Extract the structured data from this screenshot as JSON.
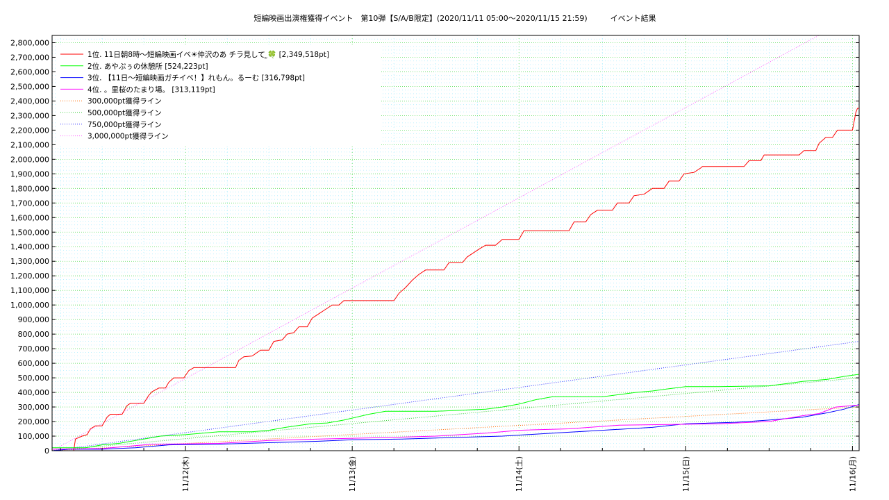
{
  "chart_data": {
    "type": "line",
    "title": "短編映画出演権獲得イベント　第10弾【S/A/B限定】(2020/11/11 05:00〜2020/11/15 21:59)　　　イベント結果",
    "xlabel": "",
    "ylabel": "",
    "x_unit": "days from 2020/11/11 00:00",
    "xlim": [
      0.2,
      5.04
    ],
    "ylim": [
      0,
      2850000
    ],
    "y_ticks": [
      0,
      100000,
      200000,
      300000,
      400000,
      500000,
      600000,
      700000,
      800000,
      900000,
      1000000,
      1100000,
      1200000,
      1300000,
      1400000,
      1500000,
      1600000,
      1700000,
      1800000,
      1900000,
      2000000,
      2100000,
      2200000,
      2300000,
      2400000,
      2500000,
      2600000,
      2700000,
      2800000
    ],
    "y_tick_labels": [
      "0",
      "100,000",
      "200,000",
      "300,000",
      "400,000",
      "500,000",
      "600,000",
      "700,000",
      "800,000",
      "900,000",
      "1,000,000",
      "1,100,000",
      "1,200,000",
      "1,300,000",
      "1,400,000",
      "1,500,000",
      "1,600,000",
      "1,700,000",
      "1,800,000",
      "1,900,000",
      "2,000,000",
      "2,100,000",
      "2,200,000",
      "2,300,000",
      "2,400,000",
      "2,500,000",
      "2,600,000",
      "2,700,000",
      "2,800,000"
    ],
    "x_major_ticks": [
      {
        "x": 1,
        "label": "11/12(木)"
      },
      {
        "x": 2,
        "label": "11/13(金)"
      },
      {
        "x": 3,
        "label": "11/14(土)"
      },
      {
        "x": 4,
        "label": "11/15(日)"
      },
      {
        "x": 5,
        "label": "11/16(月)"
      }
    ],
    "grid": true,
    "legend_position": "top-left",
    "series": [
      {
        "name": "1位. 11日朝8時〜短編映画イベ☀仲沢のあ チラ見して ̫🍀 [2,349,518pt]",
        "color": "#ff0000",
        "style": "solid",
        "points": [
          [
            0.2,
            0
          ],
          [
            0.33,
            0
          ],
          [
            0.34,
            80000
          ],
          [
            0.38,
            100000
          ],
          [
            0.41,
            110000
          ],
          [
            0.43,
            150000
          ],
          [
            0.46,
            170000
          ],
          [
            0.5,
            170000
          ],
          [
            0.53,
            230000
          ],
          [
            0.55,
            250000
          ],
          [
            0.62,
            250000
          ],
          [
            0.65,
            310000
          ],
          [
            0.67,
            325000
          ],
          [
            0.75,
            325000
          ],
          [
            0.78,
            380000
          ],
          [
            0.8,
            405000
          ],
          [
            0.84,
            430000
          ],
          [
            0.88,
            430000
          ],
          [
            0.9,
            470000
          ],
          [
            0.93,
            500000
          ],
          [
            0.99,
            500000
          ],
          [
            1.02,
            550000
          ],
          [
            1.05,
            570000
          ],
          [
            1.3,
            570000
          ],
          [
            1.32,
            620000
          ],
          [
            1.35,
            645000
          ],
          [
            1.4,
            650000
          ],
          [
            1.45,
            690000
          ],
          [
            1.5,
            690000
          ],
          [
            1.53,
            750000
          ],
          [
            1.58,
            760000
          ],
          [
            1.61,
            800000
          ],
          [
            1.65,
            810000
          ],
          [
            1.68,
            850000
          ],
          [
            1.73,
            850000
          ],
          [
            1.76,
            910000
          ],
          [
            1.8,
            940000
          ],
          [
            1.84,
            970000
          ],
          [
            1.88,
            1000000
          ],
          [
            1.92,
            1000000
          ],
          [
            1.95,
            1030000
          ],
          [
            2.25,
            1030000
          ],
          [
            2.28,
            1080000
          ],
          [
            2.32,
            1120000
          ],
          [
            2.36,
            1170000
          ],
          [
            2.4,
            1210000
          ],
          [
            2.44,
            1240000
          ],
          [
            2.55,
            1240000
          ],
          [
            2.58,
            1290000
          ],
          [
            2.66,
            1290000
          ],
          [
            2.69,
            1330000
          ],
          [
            2.73,
            1360000
          ],
          [
            2.77,
            1390000
          ],
          [
            2.8,
            1410000
          ],
          [
            2.86,
            1410000
          ],
          [
            2.9,
            1450000
          ],
          [
            3.0,
            1450000
          ],
          [
            3.03,
            1510000
          ],
          [
            3.3,
            1510000
          ],
          [
            3.33,
            1570000
          ],
          [
            3.4,
            1570000
          ],
          [
            3.43,
            1620000
          ],
          [
            3.47,
            1650000
          ],
          [
            3.56,
            1650000
          ],
          [
            3.59,
            1700000
          ],
          [
            3.66,
            1700000
          ],
          [
            3.69,
            1750000
          ],
          [
            3.75,
            1760000
          ],
          [
            3.8,
            1800000
          ],
          [
            3.87,
            1800000
          ],
          [
            3.9,
            1850000
          ],
          [
            3.96,
            1850000
          ],
          [
            3.99,
            1900000
          ],
          [
            4.05,
            1910000
          ],
          [
            4.09,
            1940000
          ],
          [
            4.1,
            1950000
          ],
          [
            4.35,
            1950000
          ],
          [
            4.38,
            1990000
          ],
          [
            4.45,
            1990000
          ],
          [
            4.47,
            2030000
          ],
          [
            4.68,
            2030000
          ],
          [
            4.71,
            2060000
          ],
          [
            4.78,
            2060000
          ],
          [
            4.8,
            2110000
          ],
          [
            4.84,
            2150000
          ],
          [
            4.88,
            2150000
          ],
          [
            4.91,
            2200000
          ],
          [
            5.0,
            2200000
          ],
          [
            5.01,
            2260000
          ],
          [
            5.02,
            2320000
          ],
          [
            5.03,
            2349518
          ],
          [
            5.04,
            2349518
          ]
        ]
      },
      {
        "name": "2位. あやぷぅの休憩所 [524,223pt]",
        "color": "#00ff00",
        "style": "solid",
        "points": [
          [
            0.2,
            20000
          ],
          [
            0.4,
            20000
          ],
          [
            0.5,
            40000
          ],
          [
            0.6,
            50000
          ],
          [
            0.75,
            80000
          ],
          [
            0.85,
            100000
          ],
          [
            1.0,
            110000
          ],
          [
            1.2,
            130000
          ],
          [
            1.4,
            130000
          ],
          [
            1.5,
            140000
          ],
          [
            1.6,
            160000
          ],
          [
            1.75,
            185000
          ],
          [
            1.85,
            190000
          ],
          [
            1.95,
            210000
          ],
          [
            2.1,
            250000
          ],
          [
            2.2,
            270000
          ],
          [
            2.5,
            270000
          ],
          [
            2.6,
            275000
          ],
          [
            2.8,
            285000
          ],
          [
            2.9,
            300000
          ],
          [
            3.0,
            320000
          ],
          [
            3.1,
            350000
          ],
          [
            3.2,
            370000
          ],
          [
            3.5,
            370000
          ],
          [
            3.6,
            385000
          ],
          [
            3.7,
            400000
          ],
          [
            3.8,
            410000
          ],
          [
            3.9,
            425000
          ],
          [
            4.0,
            440000
          ],
          [
            4.2,
            440000
          ],
          [
            4.5,
            445000
          ],
          [
            4.6,
            460000
          ],
          [
            4.7,
            475000
          ],
          [
            4.85,
            490000
          ],
          [
            4.95,
            510000
          ],
          [
            5.04,
            524223
          ]
        ]
      },
      {
        "name": "3位. 【11日〜短編映画ガチイベ！】れもん。るーむ [316,798pt]",
        "color": "#0000ff",
        "style": "solid",
        "points": [
          [
            0.2,
            0
          ],
          [
            0.3,
            10000
          ],
          [
            0.5,
            10000
          ],
          [
            0.7,
            20000
          ],
          [
            0.9,
            40000
          ],
          [
            1.2,
            45000
          ],
          [
            1.5,
            55000
          ],
          [
            1.8,
            65000
          ],
          [
            2.0,
            75000
          ],
          [
            2.3,
            80000
          ],
          [
            2.6,
            90000
          ],
          [
            2.9,
            100000
          ],
          [
            3.2,
            120000
          ],
          [
            3.5,
            140000
          ],
          [
            3.8,
            160000
          ],
          [
            4.0,
            185000
          ],
          [
            4.3,
            195000
          ],
          [
            4.5,
            210000
          ],
          [
            4.7,
            230000
          ],
          [
            4.85,
            260000
          ],
          [
            4.95,
            285000
          ],
          [
            5.04,
            316798
          ]
        ]
      },
      {
        "name": "4位. 。里桜のたまり場。 [313,119pt]",
        "color": "#ff00ff",
        "style": "solid",
        "points": [
          [
            0.2,
            10000
          ],
          [
            0.5,
            15000
          ],
          [
            0.8,
            45000
          ],
          [
            1.2,
            50000
          ],
          [
            1.5,
            70000
          ],
          [
            1.8,
            80000
          ],
          [
            2.2,
            90000
          ],
          [
            2.5,
            100000
          ],
          [
            2.8,
            120000
          ],
          [
            3.0,
            140000
          ],
          [
            3.3,
            150000
          ],
          [
            3.6,
            175000
          ],
          [
            3.9,
            180000
          ],
          [
            4.2,
            185000
          ],
          [
            4.5,
            200000
          ],
          [
            4.7,
            240000
          ],
          [
            4.8,
            255000
          ],
          [
            4.9,
            300000
          ],
          [
            5.04,
            313119
          ]
        ]
      },
      {
        "name": "300,000pt獲得ライン",
        "color": "#ff6a00",
        "style": "dotted",
        "points": [
          [
            0.2,
            0
          ],
          [
            5.04,
            300000
          ]
        ]
      },
      {
        "name": "500,000pt獲得ライン",
        "color": "#33cc33",
        "style": "dotted",
        "points": [
          [
            0.2,
            0
          ],
          [
            5.04,
            500000
          ]
        ]
      },
      {
        "name": "750,000pt獲得ライン",
        "color": "#3333ff",
        "style": "dotted",
        "points": [
          [
            0.2,
            0
          ],
          [
            5.04,
            750000
          ]
        ]
      },
      {
        "name": "3,000,000pt獲得ライン",
        "color": "#ff66ff",
        "style": "dotted",
        "points": [
          [
            0.2,
            0
          ],
          [
            5.04,
            3000000
          ]
        ]
      }
    ]
  }
}
